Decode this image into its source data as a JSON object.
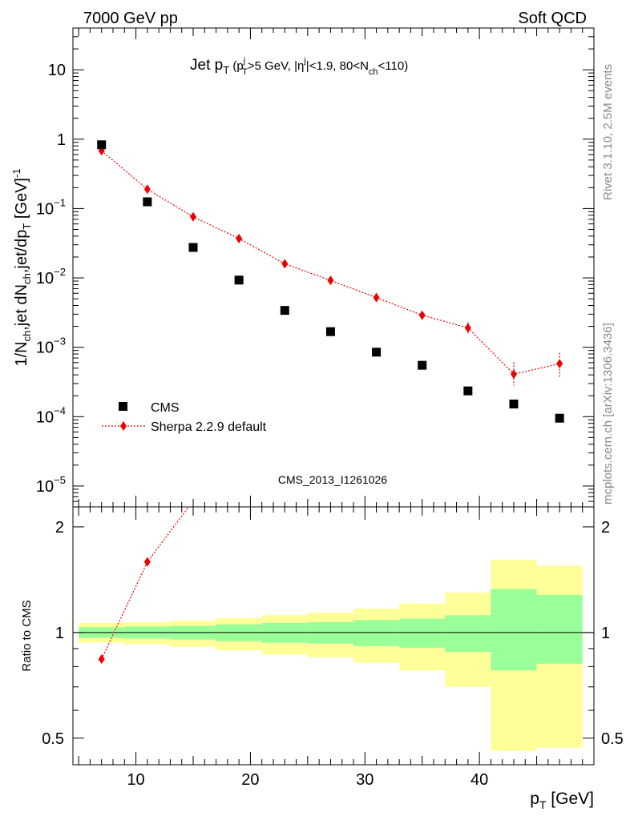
{
  "header": {
    "left": "7000 GeV pp",
    "right": "Soft QCD"
  },
  "side_labels": {
    "top": "Rivet 3.1.10,  2.5M events",
    "bottom": "mcplots.cern.ch [arXiv:1306.3436]"
  },
  "watermark": "CMS_2013_I1261026",
  "chart_data": [
    {
      "type": "scatter",
      "panel": "main",
      "title": "Jet p_T (p_T^j>5 GeV, |η^j|<1.9, 80<N_ch<110)",
      "title_parts": {
        "main": "Jet p",
        "main_sub": "T",
        "paren_open": " (p",
        "pt_sup": "j",
        "pt_sub": "T",
        "cut1": ">5 GeV, |η",
        "eta_sup": "j",
        "cut2": "|<1.9, 80<N",
        "nch_sub": "ch",
        "cut3": "<110)"
      },
      "ylabel": "1/N_ch,jet dN_ch,jet/dp_T [GeV]^-1",
      "ylabel_parts": {
        "a": "1/N",
        "a_sub": "ch",
        "b": ",jet dN",
        "b_sub": "ch",
        "c": ",jet/dp",
        "c_sub": "T",
        "d": " [GeV]",
        "d_sup": "-1"
      },
      "yscale": "log",
      "ylim": [
        5e-06,
        40
      ],
      "xlim": [
        4.5,
        50
      ],
      "ytick_labels": [
        {
          "exp": -5,
          "base": "10",
          "sup": "−5"
        },
        {
          "exp": -4,
          "base": "10",
          "sup": "−4"
        },
        {
          "exp": -3,
          "base": "10",
          "sup": "−3"
        },
        {
          "exp": -2,
          "base": "10",
          "sup": "−2"
        },
        {
          "exp": -1,
          "base": "10",
          "sup": "−1"
        },
        {
          "exp": 0,
          "base": "1",
          "sup": ""
        },
        {
          "exp": 1,
          "base": "10",
          "sup": ""
        }
      ],
      "legend": {
        "placement": "lower-left",
        "entries": [
          "CMS",
          "Sherpa 2.2.9 default"
        ]
      },
      "series": [
        {
          "name": "CMS",
          "marker": "square",
          "color": "#000000",
          "x": [
            7,
            11,
            15,
            19,
            23,
            27,
            31,
            35,
            39,
            43,
            47
          ],
          "y": [
            0.83,
            0.125,
            0.0275,
            0.0093,
            0.0034,
            0.00168,
            0.00085,
            0.00055,
            0.000235,
            0.000152,
            9.5e-05
          ]
        },
        {
          "name": "Sherpa 2.2.9 default",
          "marker": "diamond",
          "line": "dotted",
          "color": "#ee0000",
          "x": [
            7,
            11,
            15,
            19,
            23,
            27,
            31,
            35,
            39,
            43,
            47
          ],
          "y": [
            0.68,
            0.19,
            0.076,
            0.037,
            0.016,
            0.0092,
            0.0052,
            0.0029,
            0.0019,
            0.00041,
            0.00058
          ],
          "err_low": [
            0.02,
            0.007,
            0.003,
            0.0015,
            0.0007,
            0.0005,
            0.0004,
            0.0004,
            0.0004,
            0.00013,
            0.00022
          ],
          "err_high": [
            0.02,
            0.007,
            0.003,
            0.0015,
            0.0007,
            0.0005,
            0.0004,
            0.0004,
            0.0004,
            0.0002,
            0.00025
          ]
        }
      ]
    },
    {
      "type": "line",
      "panel": "ratio",
      "ylabel": "Ratio to CMS",
      "xlabel": "p_T [GeV]",
      "xlabel_parts": {
        "main": "p",
        "sub": "T",
        "unit": " [GeV]"
      },
      "xlim": [
        4.5,
        50
      ],
      "ylim": [
        0.42,
        2.28
      ],
      "yscale": "log",
      "yticks": [
        0.5,
        1,
        2
      ],
      "ytick_labels": [
        "0.5",
        "1",
        "2"
      ],
      "xticks": [
        10,
        20,
        30,
        40
      ],
      "xtick_labels": [
        "10",
        "20",
        "30",
        "40"
      ],
      "bands": [
        {
          "x0": 5,
          "x1": 9,
          "inner": [
            0.965,
            1.035
          ],
          "outer": [
            0.935,
            1.065
          ]
        },
        {
          "x0": 9,
          "x1": 13,
          "inner": [
            0.96,
            1.04
          ],
          "outer": [
            0.925,
            1.07
          ]
        },
        {
          "x0": 13,
          "x1": 17,
          "inner": [
            0.955,
            1.045
          ],
          "outer": [
            0.91,
            1.08
          ]
        },
        {
          "x0": 17,
          "x1": 21,
          "inner": [
            0.945,
            1.055
          ],
          "outer": [
            0.89,
            1.1
          ]
        },
        {
          "x0": 21,
          "x1": 25,
          "inner": [
            0.935,
            1.065
          ],
          "outer": [
            0.865,
            1.12
          ]
        },
        {
          "x0": 25,
          "x1": 29,
          "inner": [
            0.93,
            1.07
          ],
          "outer": [
            0.85,
            1.14
          ]
        },
        {
          "x0": 29,
          "x1": 33,
          "inner": [
            0.915,
            1.085
          ],
          "outer": [
            0.82,
            1.17
          ]
        },
        {
          "x0": 33,
          "x1": 37,
          "inner": [
            0.905,
            1.095
          ],
          "outer": [
            0.78,
            1.21
          ]
        },
        {
          "x0": 37,
          "x1": 41,
          "inner": [
            0.88,
            1.12
          ],
          "outer": [
            0.7,
            1.3
          ]
        },
        {
          "x0": 41,
          "x1": 45,
          "inner": [
            0.78,
            1.33
          ],
          "outer": [
            0.46,
            1.61
          ]
        },
        {
          "x0": 45,
          "x1": 49,
          "inner": [
            0.815,
            1.28
          ],
          "outer": [
            0.47,
            1.55
          ]
        }
      ],
      "band_colors": {
        "inner": "#99ff99",
        "outer": "#ffff99"
      },
      "series": [
        {
          "name": "Sherpa 2.2.9 default",
          "color": "#ee0000",
          "x": [
            7,
            11
          ],
          "y": [
            0.84,
            1.59
          ],
          "line_extends_to": [
            14.6,
            2.28
          ]
        }
      ]
    }
  ]
}
